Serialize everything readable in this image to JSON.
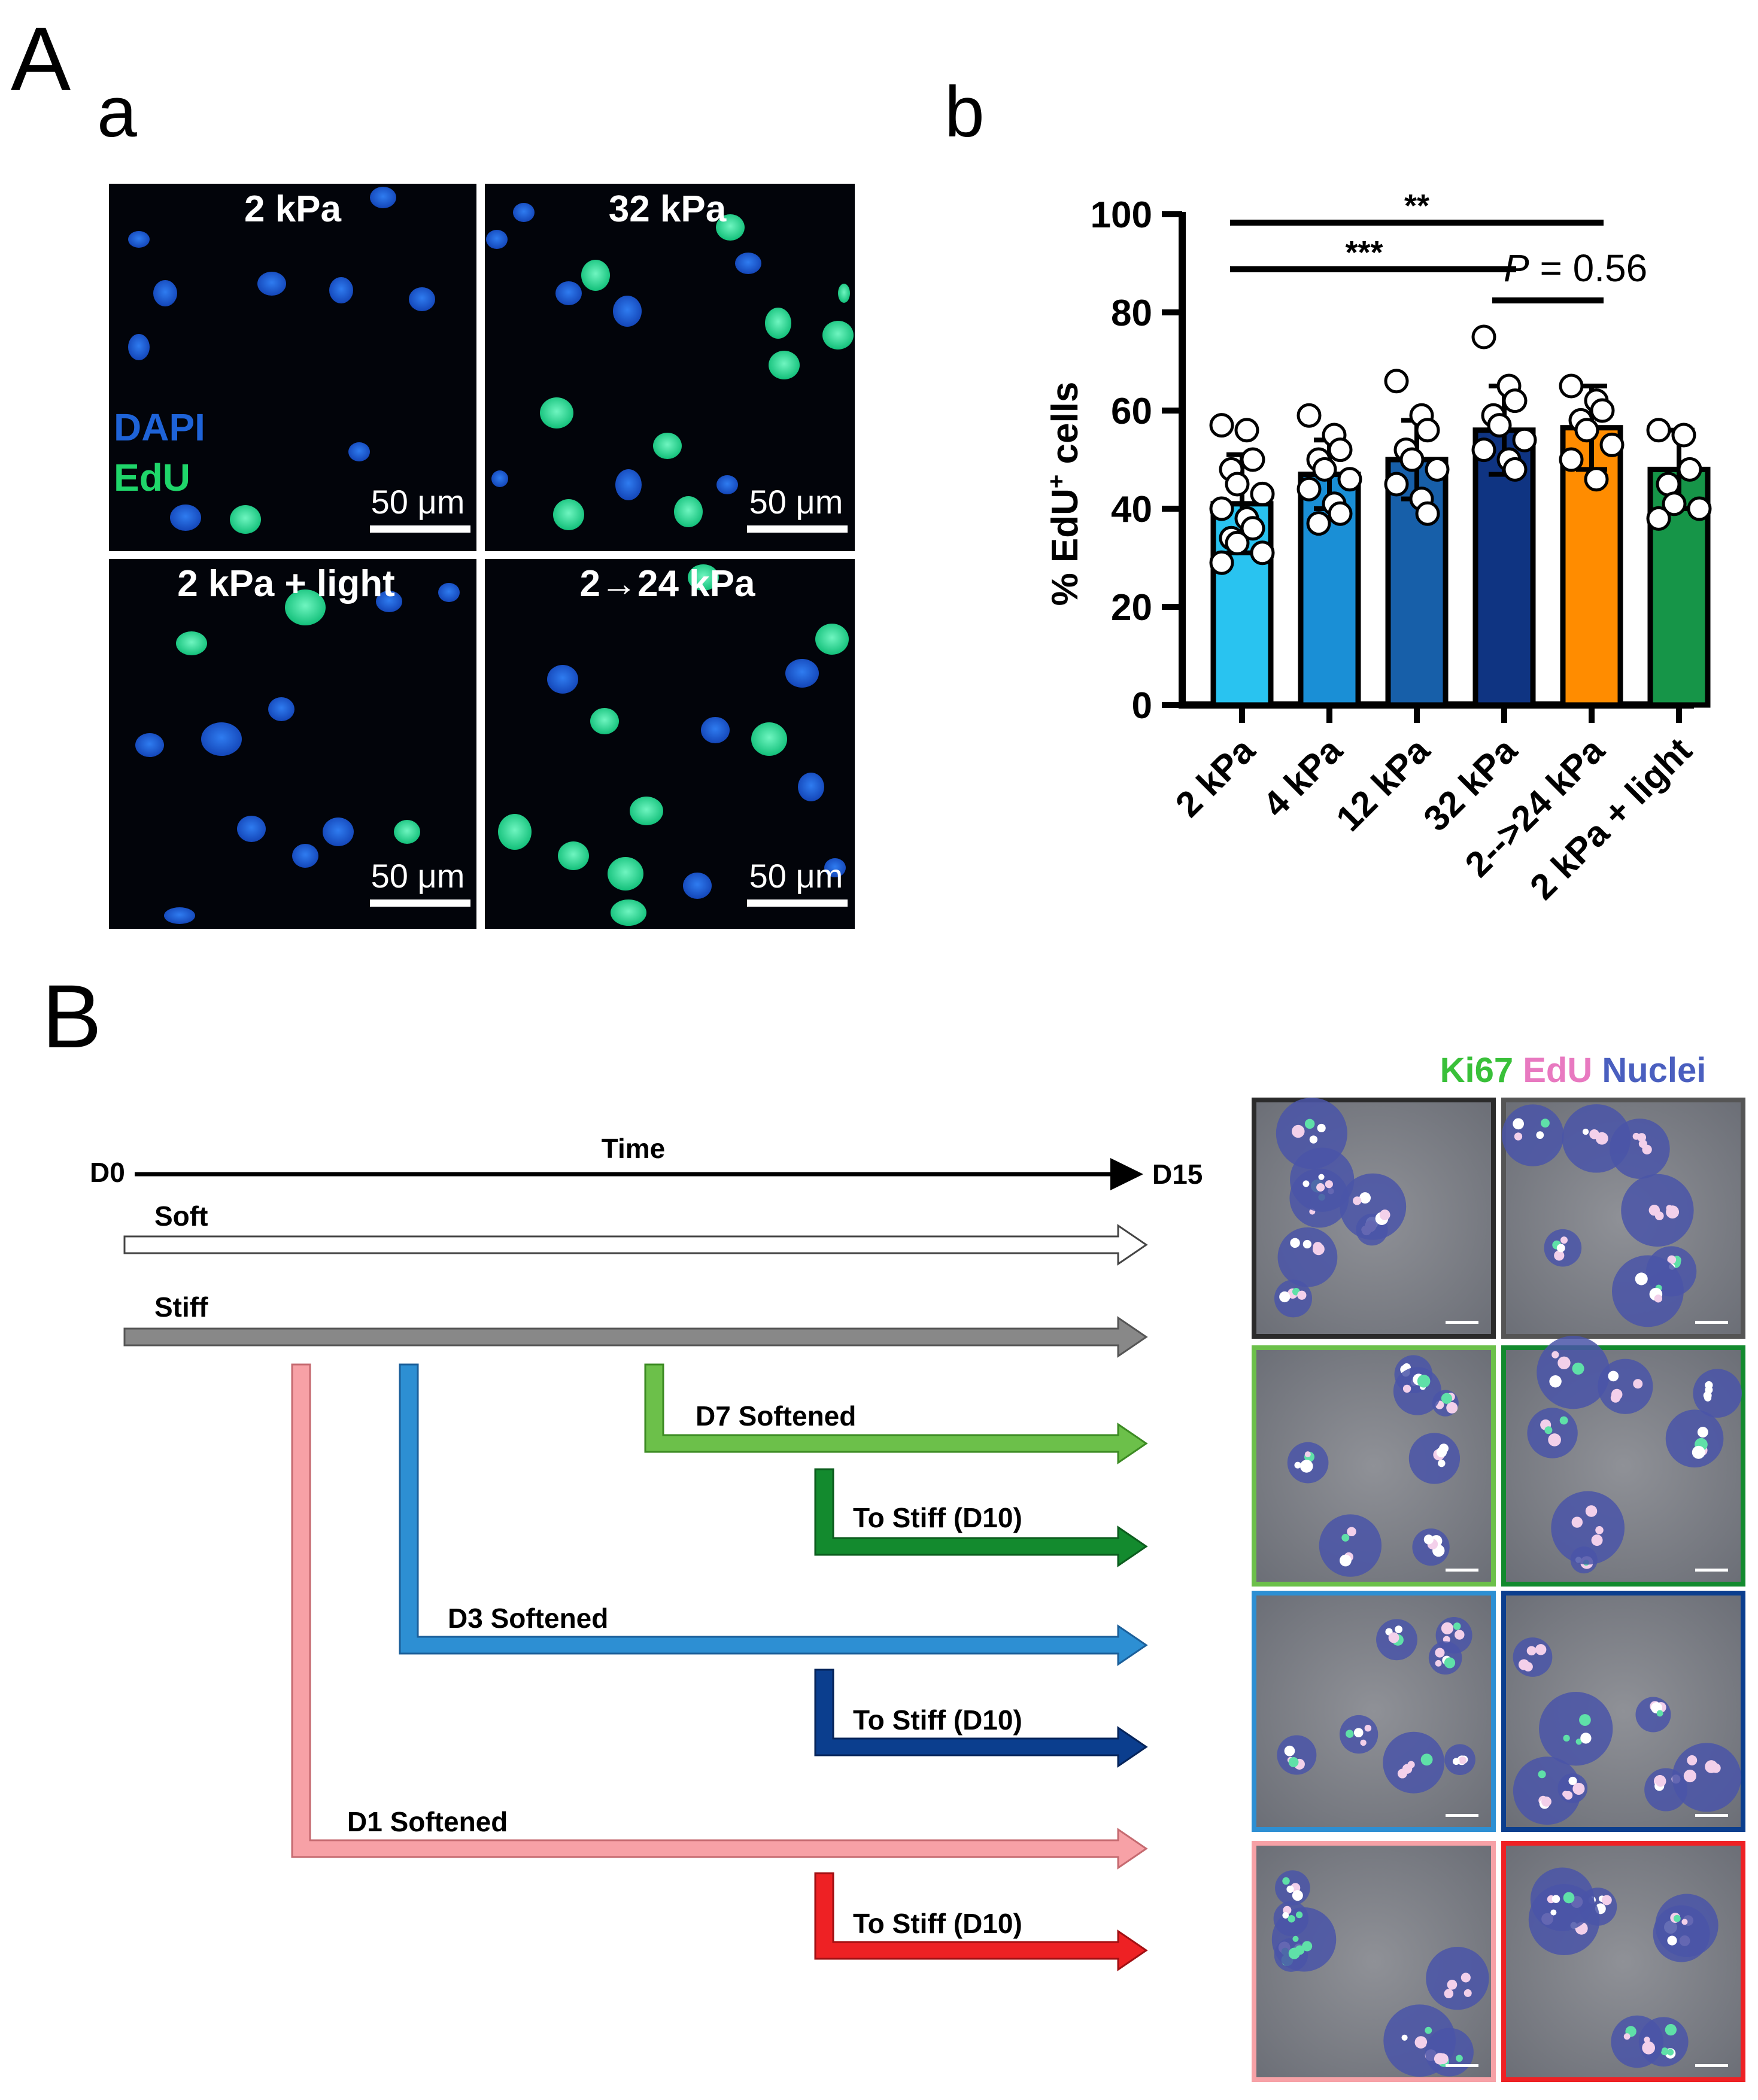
{
  "panel_labels": {
    "A": "A",
    "a": "a",
    "b": "b",
    "B": "B"
  },
  "micrographs_A": [
    {
      "title": "2 kPa",
      "scale": "50 μm",
      "legend": [
        "DAPI",
        "EdU"
      ]
    },
    {
      "title": "32 kPa",
      "scale": "50 μm"
    },
    {
      "title": "2 kPa + light",
      "scale": "50 μm"
    },
    {
      "title": "2→24 kPa",
      "scale": "50 μm"
    }
  ],
  "colors": {
    "dapi": "#1e63d8",
    "edu": "#1fe08c",
    "bar_2kPa": "#29c3f0",
    "bar_4kPa": "#1a8fd6",
    "bar_12kPa": "#175fa9",
    "bar_32kPa": "#0f3482",
    "bar_2to24kPa": "#ff8c00",
    "bar_light": "#169548",
    "ki67": "#39c039",
    "edu_pink": "#e879c0",
    "nuclei": "#4a5fbf",
    "soft_arrow": "#ffffff",
    "stiff_arrow": "#888888",
    "d7": "#6cc04a",
    "d7_stiff": "#138a2e",
    "d3": "#2d8fd3",
    "d3_stiff": "#0b3e8e",
    "d1": "#f7a1a6",
    "d1_stiff": "#ee2124"
  },
  "chart_data": {
    "type": "bar",
    "ylabel_main": "% EdU",
    "ylabel_sup": "+",
    "ylabel_tail": " cells",
    "ylim": [
      0,
      100
    ],
    "yticks": [
      0,
      20,
      40,
      60,
      80,
      100
    ],
    "categories": [
      "2 kPa",
      "4 kPa",
      "12 kPa",
      "32 kPa",
      "2-->24 kPa",
      "2 kPa + light"
    ],
    "values": [
      41,
      47,
      50,
      56,
      56.5,
      48
    ],
    "errors": [
      10,
      7,
      8,
      9,
      8.5,
      8
    ],
    "points": [
      [
        57,
        56,
        50,
        48,
        45,
        43,
        40,
        38,
        36,
        34,
        33,
        31,
        29
      ],
      [
        59,
        55,
        52,
        50,
        48,
        46,
        44,
        41,
        39,
        37
      ],
      [
        66,
        59,
        56,
        52,
        50,
        48,
        45,
        42,
        39
      ],
      [
        75,
        65,
        62,
        59,
        57,
        54,
        52,
        50,
        48
      ],
      [
        65,
        62,
        60,
        58,
        56,
        53,
        50,
        46
      ],
      [
        56,
        55,
        48,
        45,
        41,
        40,
        38
      ]
    ],
    "significance": [
      {
        "label": "**",
        "from": "2 kPa",
        "to": "2-->24 kPa"
      },
      {
        "label": "***",
        "from": "2 kPa",
        "to": "32 kPa"
      },
      {
        "label_p": "P",
        "label_rest": " = 0.56",
        "from": "32 kPa",
        "to": "2-->24 kPa"
      }
    ]
  },
  "timeline": {
    "start": "D0",
    "end": "D15",
    "axis_label": "Time",
    "arrows": [
      {
        "label": "Soft"
      },
      {
        "label": "Stiff"
      },
      {
        "label": "D7 Softened"
      },
      {
        "label": "To Stiff (D10)"
      },
      {
        "label": "D3 Softened"
      },
      {
        "label": "To Stiff (D10)"
      },
      {
        "label": "D1 Softened"
      },
      {
        "label": "To Stiff (D10)"
      }
    ]
  },
  "micrograph_legend_B": {
    "ki67": "Ki67",
    "edu": "EdU",
    "nuclei": "Nuclei"
  }
}
